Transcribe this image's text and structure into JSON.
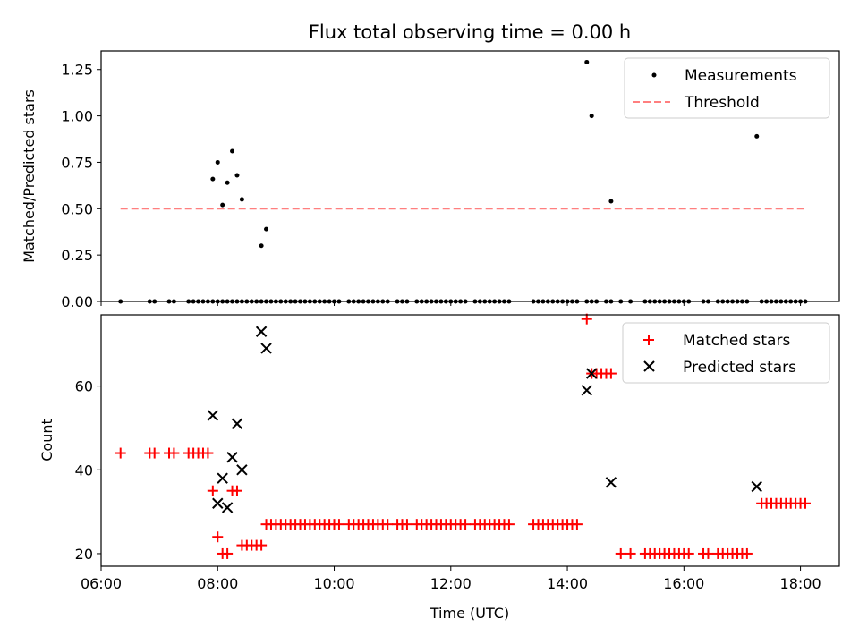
{
  "chart_data": [
    {
      "type": "scatter",
      "title": "Flux total observing time = 0.00 h",
      "xlabel": "",
      "ylabel": "Matched/Predicted stars",
      "xlim": [
        "06:00",
        "18:40"
      ],
      "ylim": [
        0,
        1.35
      ],
      "yticks": [
        "0.00",
        "0.25",
        "0.50",
        "0.75",
        "1.00",
        "1.25"
      ],
      "legend_position": "top-right",
      "series": [
        {
          "name": "Measurements",
          "color": "#000000",
          "marker": "dot",
          "x": [
            "06:20",
            "06:50",
            "06:55",
            "07:10",
            "07:15",
            "07:30",
            "07:35",
            "07:40",
            "07:45",
            "07:50",
            "07:55",
            "08:00",
            "08:05",
            "08:10",
            "08:15",
            "08:20",
            "08:25",
            "08:30",
            "08:35",
            "08:40",
            "08:45",
            "08:50",
            "08:55",
            "09:00",
            "09:05",
            "09:10",
            "09:15",
            "09:20",
            "09:25",
            "09:30",
            "09:35",
            "09:40",
            "09:45",
            "09:50",
            "09:55",
            "10:00",
            "10:05",
            "10:15",
            "10:20",
            "10:25",
            "10:30",
            "10:35",
            "10:40",
            "10:45",
            "10:50",
            "10:55",
            "11:05",
            "11:10",
            "11:15",
            "11:25",
            "11:30",
            "11:35",
            "11:40",
            "11:45",
            "11:50",
            "11:55",
            "12:00",
            "12:05",
            "12:10",
            "12:15",
            "12:25",
            "12:30",
            "12:35",
            "12:40",
            "12:45",
            "12:50",
            "12:55",
            "13:00",
            "13:25",
            "13:30",
            "13:35",
            "13:40",
            "13:45",
            "13:50",
            "13:55",
            "14:00",
            "14:05",
            "14:10",
            "14:20",
            "14:25",
            "14:30",
            "14:40",
            "14:45",
            "14:55",
            "15:05",
            "15:20",
            "15:25",
            "15:30",
            "15:35",
            "15:40",
            "15:45",
            "15:50",
            "15:55",
            "16:00",
            "16:05",
            "16:20",
            "16:25",
            "16:35",
            "16:40",
            "16:45",
            "16:50",
            "16:55",
            "17:00",
            "17:05",
            "17:20",
            "17:25",
            "17:30",
            "17:35",
            "17:40",
            "17:45",
            "17:50",
            "17:55",
            "18:00",
            "18:05",
            "07:55",
            "08:00",
            "08:05",
            "08:10",
            "08:15",
            "08:20",
            "08:25",
            "08:45",
            "08:50",
            "14:20",
            "14:25",
            "14:45",
            "17:15"
          ],
          "y": [
            0,
            0,
            0,
            0,
            0,
            0,
            0,
            0,
            0,
            0,
            0,
            0,
            0,
            0,
            0,
            0,
            0,
            0,
            0,
            0,
            0,
            0,
            0,
            0,
            0,
            0,
            0,
            0,
            0,
            0,
            0,
            0,
            0,
            0,
            0,
            0,
            0,
            0,
            0,
            0,
            0,
            0,
            0,
            0,
            0,
            0,
            0,
            0,
            0,
            0,
            0,
            0,
            0,
            0,
            0,
            0,
            0,
            0,
            0,
            0,
            0,
            0,
            0,
            0,
            0,
            0,
            0,
            0,
            0,
            0,
            0,
            0,
            0,
            0,
            0,
            0,
            0,
            0,
            0,
            0,
            0,
            0,
            0,
            0,
            0,
            0,
            0,
            0,
            0,
            0,
            0,
            0,
            0,
            0,
            0,
            0,
            0,
            0,
            0,
            0,
            0,
            0,
            0,
            0,
            0,
            0,
            0,
            0,
            0,
            0,
            0,
            0,
            0,
            0,
            0.66,
            0.75,
            0.52,
            0.64,
            0.81,
            0.68,
            0.55,
            0.3,
            0.39,
            1.29,
            1.0,
            0.54,
            0.89
          ]
        },
        {
          "name": "Threshold",
          "color": "#ff7f7f",
          "style": "dashed",
          "x": [
            "06:20",
            "18:05"
          ],
          "y": [
            0.5,
            0.5
          ]
        }
      ]
    },
    {
      "type": "scatter",
      "title": "",
      "xlabel": "Time (UTC)",
      "ylabel": "Count",
      "xlim": [
        "06:00",
        "18:40"
      ],
      "ylim": [
        17,
        77
      ],
      "yticks": [
        "20",
        "40",
        "60"
      ],
      "xticks": [
        "06:00",
        "08:00",
        "10:00",
        "12:00",
        "14:00",
        "16:00",
        "18:00"
      ],
      "legend_position": "top-right",
      "series": [
        {
          "name": "Matched stars",
          "color": "#ff0000",
          "marker": "plus",
          "x": [
            "06:20",
            "06:50",
            "06:55",
            "07:10",
            "07:15",
            "07:30",
            "07:35",
            "07:40",
            "07:45",
            "07:50",
            "07:55",
            "08:00",
            "08:05",
            "08:10",
            "08:15",
            "08:20",
            "08:25",
            "08:30",
            "08:35",
            "08:40",
            "08:45",
            "08:50",
            "08:55",
            "09:00",
            "09:05",
            "09:10",
            "09:15",
            "09:20",
            "09:25",
            "09:30",
            "09:35",
            "09:40",
            "09:45",
            "09:50",
            "09:55",
            "10:00",
            "10:05",
            "10:15",
            "10:20",
            "10:25",
            "10:30",
            "10:35",
            "10:40",
            "10:45",
            "10:50",
            "10:55",
            "11:05",
            "11:10",
            "11:15",
            "11:25",
            "11:30",
            "11:35",
            "11:40",
            "11:45",
            "11:50",
            "11:55",
            "12:00",
            "12:05",
            "12:10",
            "12:15",
            "12:25",
            "12:30",
            "12:35",
            "12:40",
            "12:45",
            "12:50",
            "12:55",
            "13:00",
            "13:25",
            "13:30",
            "13:35",
            "13:40",
            "13:45",
            "13:50",
            "13:55",
            "14:00",
            "14:05",
            "14:10",
            "14:20",
            "14:25",
            "14:30",
            "14:35",
            "14:40",
            "14:45",
            "14:55",
            "15:05",
            "15:20",
            "15:25",
            "15:30",
            "15:35",
            "15:40",
            "15:45",
            "15:50",
            "15:55",
            "16:00",
            "16:05",
            "16:20",
            "16:25",
            "16:35",
            "16:40",
            "16:45",
            "16:50",
            "16:55",
            "17:00",
            "17:05",
            "17:20",
            "17:25",
            "17:30",
            "17:35",
            "17:40",
            "17:45",
            "17:50",
            "17:55",
            "18:00",
            "18:05"
          ],
          "y": [
            44,
            44,
            44,
            44,
            44,
            44,
            44,
            44,
            44,
            44,
            35,
            24,
            20,
            20,
            35,
            35,
            22,
            22,
            22,
            22,
            22,
            27,
            27,
            27,
            27,
            27,
            27,
            27,
            27,
            27,
            27,
            27,
            27,
            27,
            27,
            27,
            27,
            27,
            27,
            27,
            27,
            27,
            27,
            27,
            27,
            27,
            27,
            27,
            27,
            27,
            27,
            27,
            27,
            27,
            27,
            27,
            27,
            27,
            27,
            27,
            27,
            27,
            27,
            27,
            27,
            27,
            27,
            27,
            27,
            27,
            27,
            27,
            27,
            27,
            27,
            27,
            27,
            27,
            76,
            63,
            63,
            63,
            63,
            63,
            20,
            20,
            20,
            20,
            20,
            20,
            20,
            20,
            20,
            20,
            20,
            20,
            20,
            20,
            20,
            20,
            20,
            20,
            20,
            20,
            20,
            32,
            32,
            32,
            32,
            32,
            32,
            32,
            32,
            32,
            32
          ]
        },
        {
          "name": "Predicted stars",
          "color": "#000000",
          "marker": "cross",
          "x": [
            "07:55",
            "08:00",
            "08:05",
            "08:10",
            "08:15",
            "08:20",
            "08:25",
            "08:45",
            "08:50",
            "14:20",
            "14:25",
            "14:45",
            "17:15"
          ],
          "y": [
            53,
            32,
            38,
            31,
            43,
            51,
            40,
            73,
            69,
            59,
            63,
            37,
            36
          ]
        }
      ]
    }
  ]
}
